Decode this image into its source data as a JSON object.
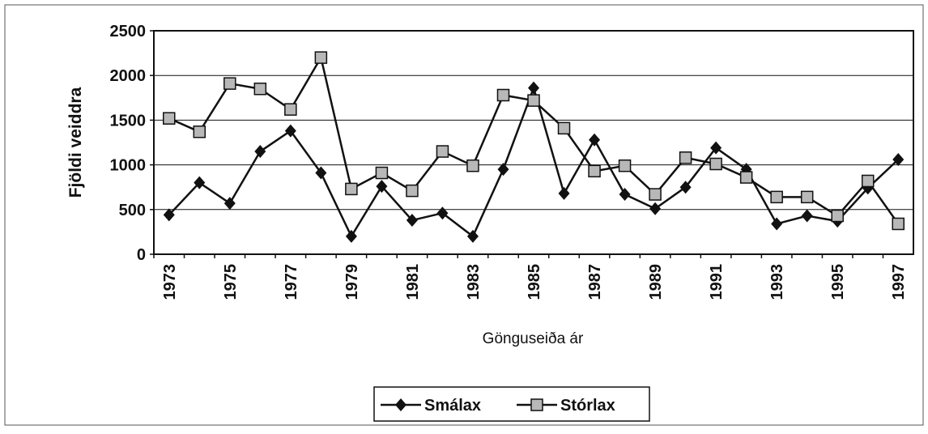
{
  "chart_data": {
    "type": "line",
    "x_label": "Gönguseiða ár",
    "y_label": "Fjöldi veiddra",
    "categories": [
      "1973",
      null,
      "1975",
      null,
      "1977",
      null,
      "1979",
      null,
      "1981",
      null,
      "1983",
      null,
      "1985",
      null,
      "1987",
      null,
      "1989",
      null,
      "1991",
      null,
      "1993",
      null,
      "1995",
      null,
      "1997"
    ],
    "series": [
      {
        "name": "Smálax",
        "color": "#111111",
        "marker": "diamond",
        "values": [
          440,
          800,
          570,
          1150,
          1380,
          910,
          200,
          760,
          380,
          460,
          200,
          950,
          1860,
          680,
          1280,
          670,
          510,
          750,
          1190,
          950,
          340,
          430,
          370,
          740,
          1060
        ]
      },
      {
        "name": "Stórlax",
        "color": "#111111",
        "marker": "square",
        "values": [
          1520,
          1370,
          1910,
          1850,
          1620,
          2200,
          730,
          910,
          710,
          1150,
          990,
          1780,
          1720,
          1410,
          930,
          990,
          670,
          1080,
          1010,
          860,
          640,
          640,
          430,
          820,
          340
        ]
      }
    ],
    "ylim": [
      0,
      2500
    ],
    "yticks": [
      0,
      500,
      1000,
      1500,
      2000,
      2500
    ],
    "grid": true,
    "legend": "bottom"
  }
}
